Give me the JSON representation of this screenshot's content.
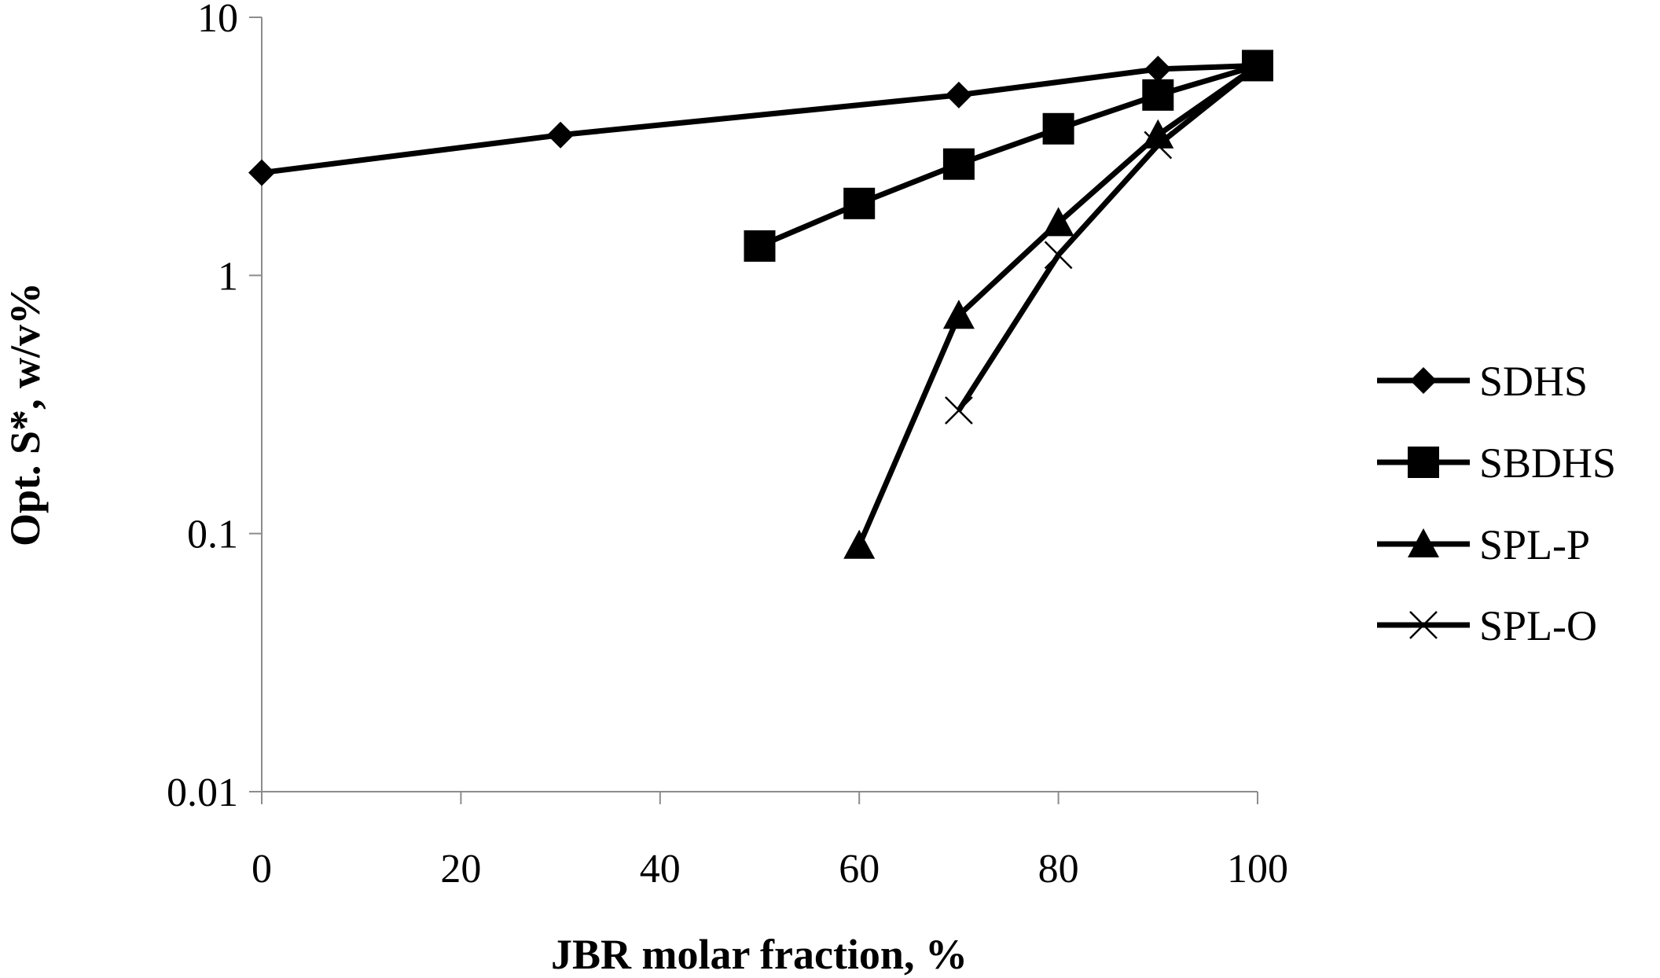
{
  "chart_data": {
    "type": "line",
    "title": "",
    "xlabel": "JBR molar fraction, %",
    "ylabel": "Opt. S*, w/v%",
    "xlim": [
      0,
      100
    ],
    "ylim": [
      0.01,
      10
    ],
    "y_scale": "log",
    "x_ticks": [
      "0",
      "20",
      "40",
      "60",
      "80",
      "100"
    ],
    "y_ticks": [
      "0.01",
      "0.1",
      "1",
      "10"
    ],
    "grid": false,
    "legend_position": "right",
    "series": [
      {
        "name": "SDHS",
        "marker": "diamond",
        "x": [
          0,
          30,
          70,
          90,
          100
        ],
        "y": [
          2.5,
          3.5,
          5.0,
          6.3,
          6.5
        ]
      },
      {
        "name": "SBDHS",
        "marker": "square",
        "x": [
          50,
          60,
          70,
          80,
          90,
          100
        ],
        "y": [
          1.3,
          1.9,
          2.7,
          3.7,
          5.0,
          6.5
        ]
      },
      {
        "name": "SPL-P",
        "marker": "triangle",
        "x": [
          60,
          70,
          80,
          90,
          100
        ],
        "y": [
          0.09,
          0.7,
          1.6,
          3.5,
          6.5
        ]
      },
      {
        "name": "SPL-O",
        "marker": "x",
        "x": [
          70,
          80,
          90,
          100
        ],
        "y": [
          0.3,
          1.2,
          3.2,
          6.5
        ]
      }
    ]
  }
}
